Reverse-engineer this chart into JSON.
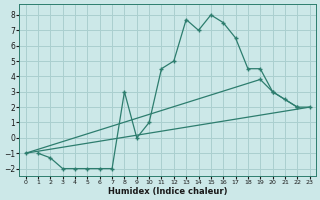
{
  "xlabel": "Humidex (Indice chaleur)",
  "bg_color": "#cce8e8",
  "grid_color": "#aacfcf",
  "line_color": "#2d7d6e",
  "xlim": [
    -0.5,
    23.5
  ],
  "ylim": [
    -2.5,
    8.7
  ],
  "xticks": [
    0,
    1,
    2,
    3,
    4,
    5,
    6,
    7,
    8,
    9,
    10,
    11,
    12,
    13,
    14,
    15,
    16,
    17,
    18,
    19,
    20,
    21,
    22,
    23
  ],
  "yticks": [
    -2,
    -1,
    0,
    1,
    2,
    3,
    4,
    5,
    6,
    7,
    8
  ],
  "line1_x": [
    1,
    2,
    3,
    4,
    5,
    6,
    7,
    8,
    9,
    10,
    11,
    12,
    13,
    14,
    15,
    16,
    17,
    18,
    19,
    20,
    21,
    22,
    23
  ],
  "line1_y": [
    -1,
    -1.3,
    -2,
    -2,
    -2,
    -2,
    -2,
    3.0,
    0.0,
    1.0,
    4.5,
    5.0,
    7.7,
    7.0,
    8.0,
    7.5,
    6.5,
    4.5,
    4.5,
    3.0,
    2.5,
    2.0,
    2.0
  ],
  "line2_x": [
    0,
    23
  ],
  "line2_y": [
    -1,
    2.0
  ],
  "line3_x": [
    0,
    19,
    20,
    22
  ],
  "line3_y": [
    -1.0,
    3.8,
    3.0,
    2.0
  ]
}
